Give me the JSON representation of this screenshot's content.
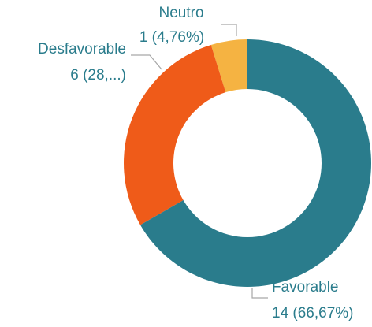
{
  "chart_data": {
    "type": "donut",
    "categories": [
      "Favorable",
      "Desfavorable",
      "Neutro"
    ],
    "values": [
      14,
      6,
      1
    ],
    "value_labels": [
      "14 (66,67%)",
      "6 (28,...)",
      "1 (4,76%)"
    ],
    "colors": [
      "#2a7c8c",
      "#ef5b19",
      "#f5b342"
    ]
  }
}
